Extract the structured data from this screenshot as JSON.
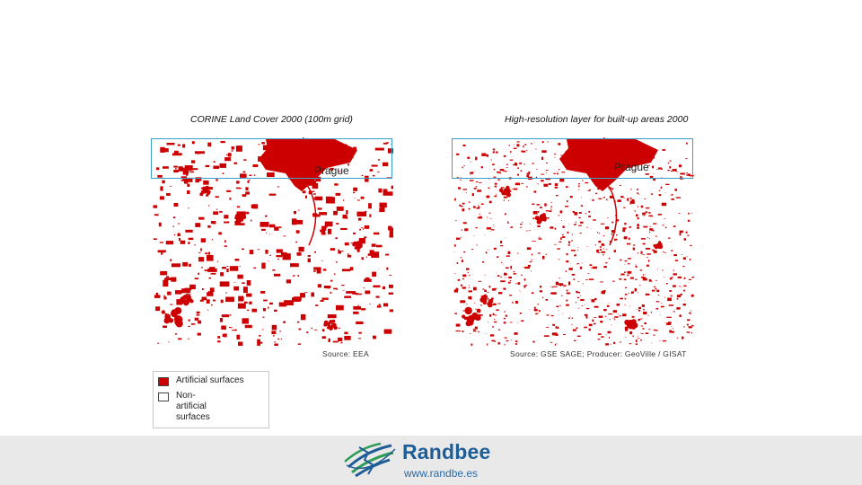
{
  "maps": [
    {
      "title": "CORINE Land Cover 2000 (100m grid)",
      "city_label": "Prague",
      "source": "Source: EEA"
    },
    {
      "title": "High-resolution layer for built-up areas 2000",
      "city_label": "Prague",
      "source": "Source: GSE SAGE; Producer: GeoVille / GISAT"
    }
  ],
  "legend": {
    "items": [
      {
        "label": "Artificial surfaces",
        "color": "#cc0000"
      },
      {
        "label": "Non-artificial surfaces",
        "color": "#ffffff"
      }
    ]
  },
  "footer": {
    "brand": "Randbee",
    "url": "www.randbe.es"
  },
  "colors": {
    "built_up": "#cc0000",
    "highlight_box": "#3aa0c8",
    "brand_blue": "#1f5d96",
    "brand_green": "#2e9b57"
  }
}
